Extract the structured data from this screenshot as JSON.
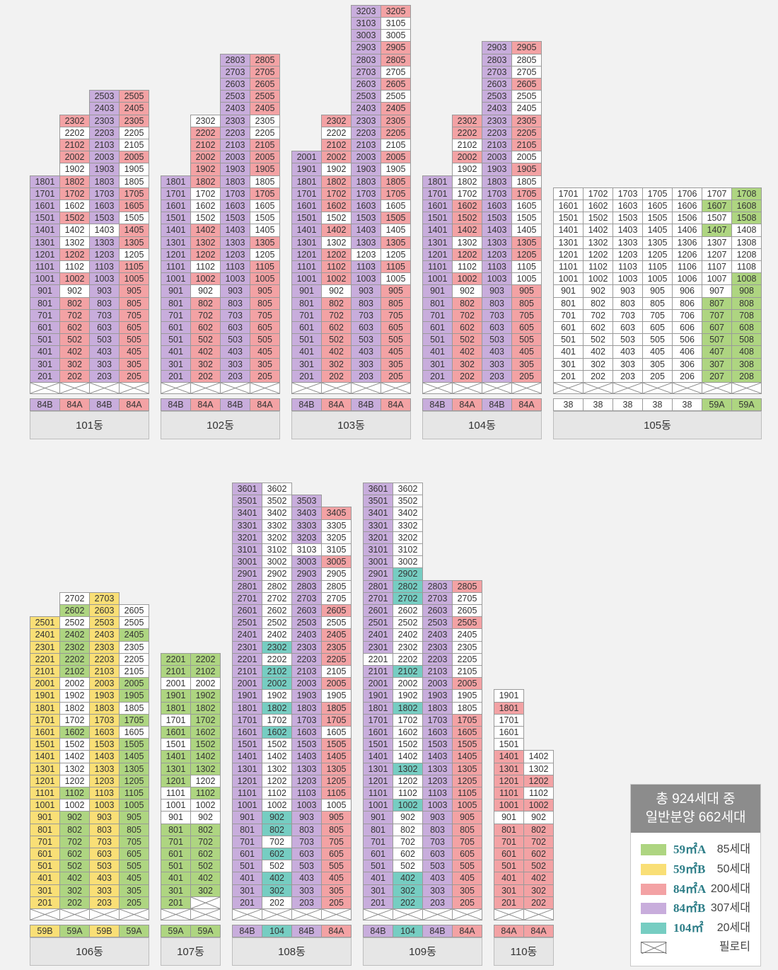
{
  "colors": {
    "59A": "#aed581",
    "59B": "#f9df76",
    "84A": "#f3a2a4",
    "84B": "#c8addc",
    "104": "#76cdc2",
    "plain": "#ffffff",
    "38": "#ffffff"
  },
  "buildings": [
    {
      "name": "101동",
      "types": [
        "84B",
        "84A",
        "84B",
        "84A"
      ],
      "cols": [
        {
          "floors": [
            [
              18,
              1
            ],
            [
              2,
              0
            ]
          ],
          "extra": {}
        },
        {
          "floors": [
            [
              23,
              2
            ],
            [
              2,
              0
            ]
          ],
          "extra": {}
        },
        {
          "floors": [
            [
              25,
              3
            ],
            [
              2,
              0
            ]
          ],
          "extra": {}
        },
        {
          "floors": [
            [
              25,
              5
            ],
            [
              2,
              0
            ]
          ],
          "extra": {}
        }
      ],
      "plain": [
        "1902",
        "1905",
        "2105",
        "2202",
        "2205",
        "1805",
        "1605",
        "1505",
        "1405",
        "1205",
        "905",
        "902",
        "1102",
        "1402",
        "1602",
        "1102"
      ],
      "pink": [
        "2302",
        "2102",
        "2002",
        "2305",
        "2405",
        "2505",
        "1802",
        "1702",
        "1502",
        "1202",
        "1002",
        "802",
        "602",
        "402",
        "202",
        "1705",
        "1105",
        "805",
        "605",
        "405",
        "205",
        "2005",
        "1405"
      ]
    },
    {
      "name": "102동",
      "types": [
        "84B",
        "84A",
        "84B",
        "84A"
      ]
    },
    {
      "name": "103동",
      "types": [
        "84B",
        "84A",
        "84B",
        "84A"
      ]
    },
    {
      "name": "104동",
      "types": [
        "84B",
        "84A",
        "84B",
        "84A"
      ]
    },
    {
      "name": "105동",
      "types": [
        "38",
        "38",
        "38",
        "38",
        "38",
        "59A",
        "59A"
      ]
    },
    {
      "name": "106동",
      "types": [
        "59B",
        "59A",
        "59B",
        "59A"
      ]
    },
    {
      "name": "107동",
      "types": [
        "59A",
        "59A"
      ]
    },
    {
      "name": "108동",
      "types": [
        "84B",
        "104",
        "84B",
        "84A"
      ]
    },
    {
      "name": "109동",
      "types": [
        "84B",
        "104",
        "84B",
        "84A"
      ]
    },
    {
      "name": "110동",
      "types": [
        "84A",
        "84A"
      ]
    }
  ],
  "legend": {
    "title_line1": "총 924세대 중",
    "title_line2": "일반분양 662세대",
    "rows": [
      {
        "type": "59㎡A",
        "count": "85세대",
        "color": "#aed581"
      },
      {
        "type": "59㎡B",
        "count": "50세대",
        "color": "#f9df76"
      },
      {
        "type": "84㎡A",
        "count": "200세대",
        "color": "#f3a2a4"
      },
      {
        "type": "84㎡B",
        "count": "307세대",
        "color": "#c8addc"
      },
      {
        "type": "104㎡",
        "count": "20세대",
        "color": "#76cdc2"
      },
      {
        "type": "",
        "count": "필로티",
        "color": "#ffffff",
        "icon": "pilotis-icon"
      }
    ]
  },
  "grid": {
    "b101": {
      "c1": "1801:B 1701:B 1601:B 1501:B 1401:B 1301:B 1201:B 1101:B 1001:B 901:B 801:B 701:B 601:B 501:B 401:B 301:B 201:B",
      "c2": "2302:A 2202:W 2102:A 2002:A 1902:W 1802:A 1702:A 1602:W 1502:A 1402:W 1302:W 1202:A 1102:W 1002:A 902:W 802:A 702:A 602:A 502:A 402:A 302:A 202:A",
      "c3": "2503:B 2403:B 2303:B 2203:B 2103:B 2003:B 1903:B 1803:B 1703:B 1603:B 1503:B 1403:W 1303:B 1203:B 1103:B 1003:B 903:B 803:B 703:B 603:B 503:B 403:B 303:B 203:B",
      "c4": "2505:A 2405:A 2305:A 2205:W 2105:W 2005:A 1905:W 1805:W 1705:A 1605:A 1505:W 1405:A 1305:A 1205:W 1105:A 1005:A 905:A 805:A 705:A 605:A 505:A 405:A 305:A 205:A"
    },
    "b102": {
      "c1": "1801:B 1701:B 1601:B 1501:B 1401:B 1301:B 1201:B 1101:B 1001:B 901:B 801:B 701:B 601:B 501:B 401:B 301:B 201:B",
      "c2": "2302:W 2202:A 2102:A 2002:A 1902:A 1802:A 1702:W 1602:W 1502:W 1402:A 1302:A 1202:A 1102:W 1002:A 902:W 802:A 702:A 602:A 502:A 402:A 302:A 202:A",
      "c3": "2803:B 2703:B 2603:B 2503:B 2403:B 2303:B 2203:B 2103:B 2003:B 1903:B 1803:B 1703:B 1603:B 1503:B 1403:B 1303:B 1203:B 1103:B 1003:B 903:B 803:B 703:B 603:B 503:B 403:B 303:B 203:B",
      "c4": "2805:A 2705:A 2605:A 2505:A 2405:A 2305:W 2205:W 2105:A 2005:A 1905:A 1805:W 1705:A 1605:W 1505:W 1405:W 1305:A 1205:W 1105:A 1005:A 905:A 805:A 705:A 605:A 505:A 405:A 305:A 205:A"
    },
    "b103": {
      "c1": "2001:B 1901:B 1801:B 1701:B 1601:B 1501:B 1401:B 1301:B 1201:B 1101:B 1001:B 901:B 801:B 701:B 601:B 501:B 401:B 301:B 201:B",
      "c2": "2302:A 2202:W 2102:A 2002:A 1902:W 1802:A 1702:A 1602:A 1502:W 1402:A 1302:W 1202:A 1102:A 1002:A 902:W 802:A 702:A 602:A 502:A 402:A 302:A 202:A",
      "c3": "3203:B 3103:B 3003:B 2903:B 2803:B 2703:B 2603:B 2503:B 2403:B 2303:B 2203:B 2103:B 2003:B 1903:B 1803:B 1703:B 1603:B 1503:B 1403:B 1303:B 1203:W 1103:B 1003:B 903:B 803:B 703:B 603:B 503:B 403:B 303:B 203:B",
      "c4": "3205:A 3105:W 3005:W 2905:A 2805:A 2705:W 2605:A 2505:W 2405:A 2305:A 2205:A 2105:W 2005:A 1905:W 1805:A 1705:A 1605:W 1505:A 1405:W 1305:A 1205:W 1105:A 1005:W 905:A 805:A 705:A 605:A 505:A 405:A 305:A 205:A"
    },
    "b104": {
      "c1": "1801:B 1701:B 1601:B 1501:B 1401:B 1301:B 1201:B 1101:B 1001:B 901:B 801:B 701:B 601:B 501:B 401:B 301:B 201:B",
      "c2": "2302:A 2202:A 2102:W 2002:A 1902:W 1802:W 1702:W 1602:A 1502:A 1402:A 1302:W 1202:A 1102:W 1002:A 902:W 802:A 702:A 602:A 502:A 402:A 302:A 202:A",
      "c3": "2903:B 2803:B 2703:B 2603:B 2503:B 2403:B 2303:B 2203:B 2103:B 2003:B 1903:B 1803:B 1703:B 1603:B 1503:B 1403:B 1303:B 1203:B 1103:B 1003:B 903:B 803:B 703:B 603:B 503:B 403:B 303:B 203:B",
      "c4": "2905:A 2805:W 2705:W 2605:A 2505:W 2405:W 2305:A 2205:A 2105:A 2005:W 1905:A 1805:W 1705:A 1605:W 1505:W 1405:W 1305:A 1205:A 1105:W 1005:W 905:A 805:A 705:A 605:A 505:A 405:A 305:A 205:A"
    },
    "b105": {
      "c1": "1701:W 1601:W 1501:W 1401:W 1301:W 1201:W 1101:W 1001:W 901:W 801:W 701:W 601:W 501:W 401:W 301:W 201:W",
      "c2": "1702:W 1602:W 1502:W 1402:W 1302:W 1202:W 1102:W 1002:W 902:W 802:W 702:W 602:W 502:W 402:W 302:W 202:W",
      "c3": "1703:W 1603:W 1503:W 1403:W 1303:W 1203:W 1103:W 1003:W 903:W 803:W 703:W 603:W 503:W 403:W 303:W 203:W",
      "c4": "1705:W 1605:W 1505:W 1405:W 1305:W 1205:W 1105:W 1005:W 905:W 805:W 705:W 605:W 505:W 405:W 305:W 205:W",
      "c5": "1706:W 1606:W 1506:W 1406:W 1306:W 1206:W 1106:W 1006:W 906:W 806:W 706:W 606:W 506:W 406:W 306:W 206:W",
      "c6": "1707:W 1607:G 1507:W 1407:G 1307:W 1207:W 1107:W 1007:W 907:W 807:G 707:G 607:G 507:G 407:G 307:G 207:G",
      "c7": "1708:G 1608:G 1508:G 1408:W 1308:W 1208:W 1108:W 1008:G 908:G 808:G 708:G 608:G 508:G 408:G 308:G 208:G"
    },
    "b106": {
      "c1": "2501:Y 2401:Y 2301:Y 2201:Y 2101:Y 2001:Y 1901:Y 1801:Y 1701:Y 1601:Y 1501:Y 1401:Y 1301:Y 1201:Y 1101:Y 1001:Y 901:Y 801:Y 701:Y 601:Y 501:Y 401:Y 301:Y 201:Y",
      "c2": "2702:W 2602:G 2502:W 2402:G 2302:G 2202:G 2102:G 2002:W 1902:W 1802:W 1702:W 1602:G 1502:W 1402:W 1302:W 1202:W 1102:G 1002:W 902:G 802:G 702:G 602:G 502:G 402:G 302:G 202:G",
      "c3": "2703:Y 2603:Y 2503:Y 2403:Y 2303:Y 2203:Y 2103:Y 2003:Y 1903:Y 1803:Y 1703:Y 1603:Y 1503:Y 1403:Y 1303:Y 1203:Y 1103:Y 1003:Y 903:Y 803:Y 703:Y 603:Y 503:Y 403:Y 303:Y 203:Y",
      "c4": "2605:W 2505:W 2405:G 2305:W 2205:W 2105:W 2005:G 1905:G 1805:W 1705:G 1605:W 1505:G 1405:G 1305:G 1205:G 1105:G 1005:G 905:G 805:G 705:G 605:G 505:G 405:G 305:G 205:G"
    },
    "b107": {
      "c1": "2201:G 2101:G 2001:W 1901:G 1801:G 1701:W 1601:G 1501:W 1401:G 1301:G 1201:G 1101:W 1001:W 901:W 801:G 701:G 601:G 501:G 401:G 301:G 201:G",
      "c2": "2202:G 2102:G 2002:W 1902:G 1802:G 1702:G 1602:G 1502:G 1402:G 1302:G 1202:W 1102:G 1002:W 902:W 802:G 702:G 602:G 502:G 402:G 302:G X"
    },
    "b108": {
      "c1": "3601:B 3501:B 3401:B 3301:B 3201:B 3101:B 3001:B 2901:B 2801:B 2701:B 2601:B 2501:B 2401:B 2301:B 2201:B 2101:B 2001:B 1901:B 1801:B 1701:B 1601:B 1501:B 1401:B 1301:B 1201:B 1101:B 1001:B 901:B 801:B 701:B 601:B 501:B 401:B 301:B 201:B",
      "c2": "3602:W 3502:W 3402:W 3302:W 3202:W 3102:W 3002:W 2902:W 2802:W 2702:W 2602:W 2502:W 2402:W 2302:T 2202:W 2102:T 2002:T 1902:W 1802:T 1702:W 1602:T 1502:W 1402:W 1302:W 1202:W 1102:W 1002:W 902:T 802:T 702:W 602:T 502:W 402:T 302:T 202:W",
      "c3": "3503:B 3403:B 3303:B 3203:B 3103:W 3003:B 2903:B 2803:B 2703:B 2603:B 2503:B 2403:B 2303:B 2203:B 2103:B 2003:B 1903:B 1803:B 1703:B 1603:B 1503:B 1403:B 1303:B 1203:B 1103:B 1003:B 903:B 803:B 703:B 603:B 503:B 403:B 303:B 203:B",
      "c4": "3405:A 3305:W 3205:W 3105:W 3005:A 2905:W 2805:W 2705:W 2605:A 2505:W 2405:A 2305:A 2205:A 2105:W 2005:A 1905:W 1805:A 1705:A 1605:W 1505:A 1405:A 1305:A 1205:A 1105:A 1005:W 905:A 805:A 705:A 605:A 505:A 405:A 305:A 205:A"
    },
    "b109": {
      "c1": "3601:B 3501:B 3401:B 3301:B 3201:B 3101:B 3001:B 2901:B 2801:B 2701:B 2601:B 2501:B 2401:B 2301:B 2201:W 2101:B 2001:B 1901:B 1801:B 1701:B 1601:B 1501:B 1401:B 1301:B 1201:B 1101:B 1001:B 901:B 801:B 701:B 601:B 501:B 401:B 301:B 201:B",
      "c2": "3602:W 3502:W 3402:W 3302:W 3202:W 3102:W 3002:W 2902:T 2802:T 2702:T 2602:W 2502:W 2402:W 2302:W 2202:W 2102:T 2002:W 1902:W 1802:T 1702:W 1602:W 1502:W 1402:W 1302:T 1202:W 1102:W 1002:T 902:W 802:W 702:W 602:W 502:W 402:T 302:T 202:T",
      "c3": "2803:B 2703:B 2603:B 2503:B 2403:B 2303:B 2203:B 2103:B 2003:B 1903:B 1803:B 1703:B 1603:B 1503:B 1403:B 1303:B 1203:B 1103:B 1003:B 903:B 803:B 703:B 603:B 503:B 403:B 303:B 203:B",
      "c4": "2805:A 2705:W 2605:W 2505:A 2405:W 2305:W 2205:W 2105:W 2005:A 1905:W 1805:W 1705:A 1605:A 1505:A 1405:A 1305:A 1205:A 1105:A 1005:A 905:A 805:A 705:A 605:A 505:A 405:A 305:A 205:A"
    },
    "b110": {
      "c1": "1901:W 1801:A 1701:W 1601:W 1501:W 1401:A 1301:A 1201:A 1101:A 1001:A 901:W 801:A 701:A 601:A 501:A 401:A 301:A 201:A",
      "c2": "1402:W 1302:W 1202:A 1102:W 1002:A 902:W 802:A 702:A 602:A 502:A 402:A 302:A 202:A"
    }
  }
}
